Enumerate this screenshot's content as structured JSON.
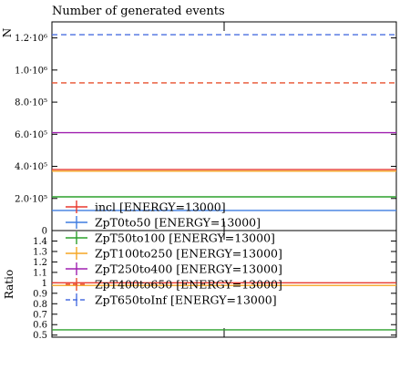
{
  "chart_data": [
    {
      "type": "line",
      "panel": "main",
      "title": "Number of generated events",
      "ylabel": "N",
      "ylim": [
        0,
        1300000
      ],
      "yticks": [
        {
          "value": 0,
          "label": "0"
        },
        {
          "value": 200000,
          "label": "2.0·10⁵"
        },
        {
          "value": 400000,
          "label": "4.0·10⁵"
        },
        {
          "value": 600000,
          "label": "6.0·10⁵"
        },
        {
          "value": 800000,
          "label": "8.0·10⁵"
        },
        {
          "value": 1000000,
          "label": "1.0·10⁶"
        },
        {
          "value": 1200000,
          "label": "1.2·10⁶"
        }
      ],
      "series": [
        {
          "name": "incl [ENERGY=13000]",
          "value": 380000,
          "color": "#e8392e",
          "dash": "solid"
        },
        {
          "name": "ZpT0to50 [ENERGY=13000]",
          "value": 125000,
          "color": "#3f7de0",
          "dash": "solid"
        },
        {
          "name": "ZpT50to100 [ENERGY=13000]",
          "value": 210000,
          "color": "#2ca02c",
          "dash": "solid"
        },
        {
          "name": "ZpT100to250 [ENERGY=13000]",
          "value": 370000,
          "color": "#f5a623",
          "dash": "solid"
        },
        {
          "name": "ZpT250to400 [ENERGY=13000]",
          "value": 610000,
          "color": "#a020b0",
          "dash": "solid"
        },
        {
          "name": "ZpT400to650 [ENERGY=13000]",
          "value": 920000,
          "color": "#e8512e",
          "dash": "dashed"
        },
        {
          "name": "ZpT650toInf [ENERGY=13000]",
          "value": 1220000,
          "color": "#4a6fe0",
          "dash": "dashed"
        }
      ],
      "legend": "bottom-left"
    },
    {
      "type": "line",
      "panel": "ratio",
      "ylabel": "Ratio",
      "ylim": [
        0.48,
        1.5
      ],
      "yticks": [
        {
          "value": 0.5,
          "label": "0.5"
        },
        {
          "value": 0.6,
          "label": "0.6"
        },
        {
          "value": 0.7,
          "label": "0.7"
        },
        {
          "value": 0.8,
          "label": "0.8"
        },
        {
          "value": 0.9,
          "label": "0.9"
        },
        {
          "value": 1.0,
          "label": "1"
        },
        {
          "value": 1.1,
          "label": "1.1"
        },
        {
          "value": 1.2,
          "label": "1.2"
        },
        {
          "value": 1.3,
          "label": "1.3"
        },
        {
          "value": 1.4,
          "label": "1.4"
        }
      ],
      "series": [
        {
          "name": "ZpT100to250 [ENERGY=13000]",
          "value": 0.975,
          "color": "#f5a623",
          "dash": "solid"
        },
        {
          "name": "incl [ENERGY=13000]",
          "value": 1.0,
          "color": "#e8392e",
          "dash": "solid"
        },
        {
          "name": "ZpT50to100 [ENERGY=13000]",
          "value": 0.55,
          "color": "#2ca02c",
          "dash": "solid"
        }
      ]
    }
  ]
}
